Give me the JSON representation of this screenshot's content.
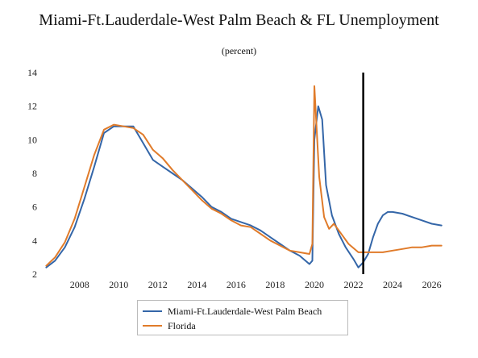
{
  "title": "Miami-Ft.Lauderdale-West Palm Beach & FL Unemployment",
  "subtitle": "(percent)",
  "chart_data": {
    "type": "line",
    "title": "Miami-Ft.Lauderdale-West Palm Beach & FL Unemployment",
    "subtitle": "(percent)",
    "xlim": [
      2006.2,
      2026.8
    ],
    "ylim": [
      2,
      14
    ],
    "x_ticks": [
      2008,
      2010,
      2012,
      2014,
      2016,
      2018,
      2020,
      2022,
      2024,
      2026
    ],
    "y_ticks": [
      2,
      4,
      6,
      8,
      10,
      12,
      14
    ],
    "grid": false,
    "legend_position": "bottom",
    "vertical_marker_x": 2022.5,
    "series": [
      {
        "name": "Miami-Ft.Lauderdale-West Palm Beach",
        "color": "#3466a8",
        "x": [
          2006.3,
          2006.75,
          2007.25,
          2007.75,
          2008.25,
          2008.75,
          2009.25,
          2009.75,
          2010.25,
          2010.75,
          2011.25,
          2011.75,
          2012.25,
          2012.75,
          2013.25,
          2013.75,
          2014.25,
          2014.75,
          2015.25,
          2015.75,
          2016.25,
          2016.75,
          2017.25,
          2017.75,
          2018.25,
          2018.75,
          2019.25,
          2019.75,
          2019.9,
          2020.0,
          2020.2,
          2020.4,
          2020.6,
          2020.9,
          2021.25,
          2021.6,
          2022.0,
          2022.25,
          2022.5,
          2022.75,
          2023.0,
          2023.25,
          2023.5,
          2023.75,
          2024.0,
          2024.5,
          2025.0,
          2025.5,
          2026.0,
          2026.5
        ],
        "values": [
          2.4,
          2.8,
          3.6,
          4.8,
          6.5,
          8.4,
          10.4,
          10.8,
          10.8,
          10.8,
          9.8,
          8.8,
          8.4,
          8.0,
          7.6,
          7.1,
          6.6,
          6.0,
          5.7,
          5.3,
          5.1,
          4.9,
          4.6,
          4.2,
          3.8,
          3.4,
          3.1,
          2.6,
          2.8,
          10.0,
          12.0,
          11.2,
          7.3,
          5.5,
          4.4,
          3.6,
          2.9,
          2.4,
          2.7,
          3.2,
          4.2,
          5.0,
          5.5,
          5.7,
          5.7,
          5.6,
          5.4,
          5.2,
          5.0,
          4.9
        ]
      },
      {
        "name": "Florida",
        "color": "#e07b2a",
        "x": [
          2006.3,
          2006.75,
          2007.25,
          2007.75,
          2008.25,
          2008.75,
          2009.25,
          2009.75,
          2010.25,
          2010.75,
          2011.25,
          2011.75,
          2012.25,
          2012.75,
          2013.25,
          2013.75,
          2014.25,
          2014.75,
          2015.25,
          2015.75,
          2016.25,
          2016.75,
          2017.25,
          2017.75,
          2018.25,
          2018.75,
          2019.25,
          2019.75,
          2019.9,
          2020.0,
          2020.25,
          2020.5,
          2020.75,
          2021.0,
          2021.25,
          2021.75,
          2022.25,
          2022.5,
          2022.75,
          2023.0,
          2023.5,
          2024.0,
          2024.5,
          2025.0,
          2025.5,
          2026.0,
          2026.5
        ],
        "values": [
          2.5,
          3.0,
          3.9,
          5.3,
          7.2,
          9.1,
          10.6,
          10.9,
          10.8,
          10.7,
          10.3,
          9.4,
          8.9,
          8.2,
          7.6,
          7.0,
          6.4,
          5.9,
          5.6,
          5.2,
          4.9,
          4.8,
          4.4,
          4.0,
          3.7,
          3.4,
          3.3,
          3.2,
          3.8,
          13.2,
          7.8,
          5.4,
          4.7,
          5.0,
          4.6,
          3.8,
          3.3,
          3.3,
          3.3,
          3.3,
          3.3,
          3.4,
          3.5,
          3.6,
          3.6,
          3.7,
          3.7
        ]
      }
    ]
  }
}
